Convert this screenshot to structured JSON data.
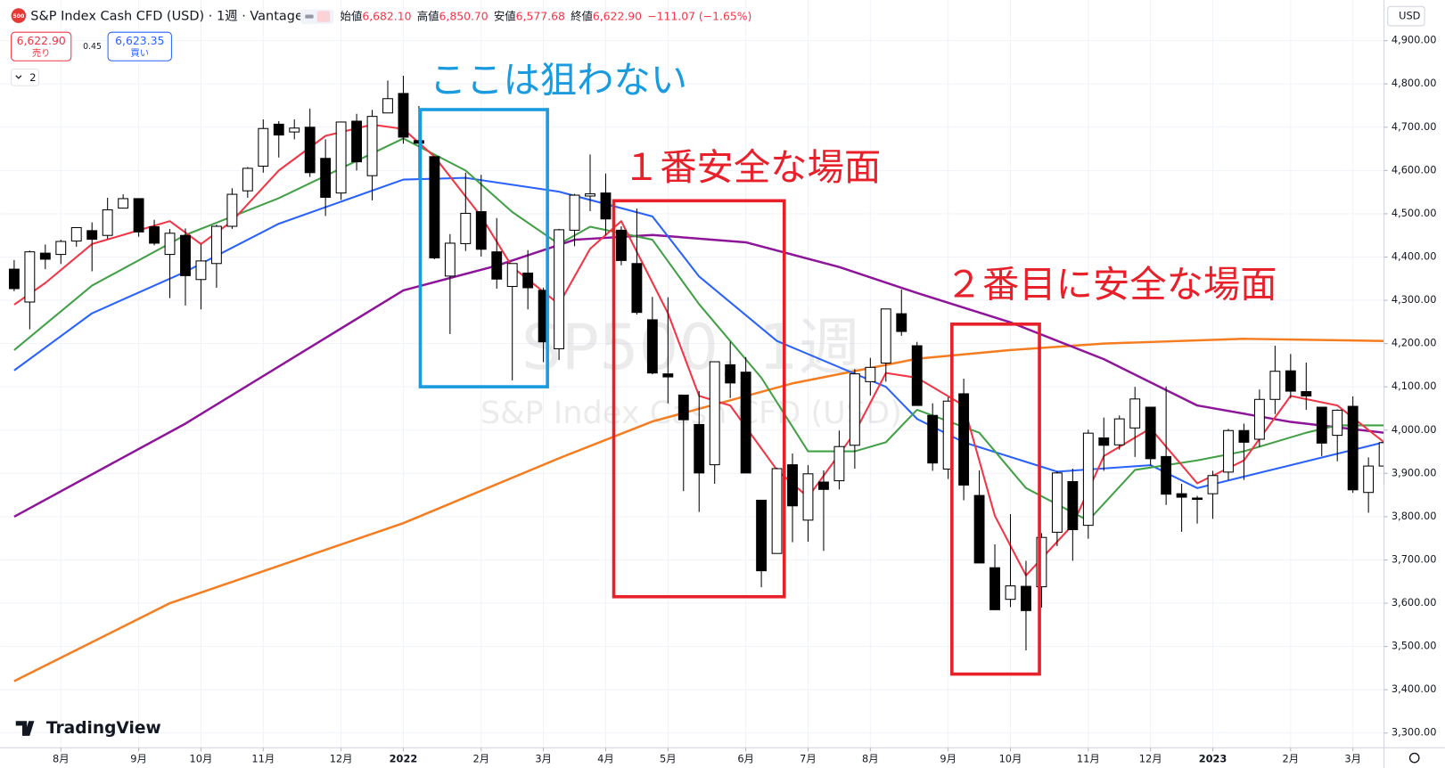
{
  "header": {
    "badge": "500",
    "symbol": "S&P Index Cash CFD (USD) · 1週 · Vantage",
    "ohlc": [
      {
        "label": "始値",
        "value": "6,682.10"
      },
      {
        "label": "高値",
        "value": "6,850.70"
      },
      {
        "label": "安値",
        "value": "6,577.68"
      },
      {
        "label": "終値",
        "value": "6,622.90"
      }
    ],
    "change": "−111.07 (−1.65%)"
  },
  "trade": {
    "sell_price": "6,622.90",
    "sell_label": "売り",
    "spread": "0.45",
    "buy_price": "6,623.35",
    "buy_label": "買い"
  },
  "indicators_count": "2",
  "watermark": {
    "symbol": "SP500, 1週",
    "description": "S&P Index Cash CFD (USD)"
  },
  "logo": "TradingView",
  "chart_data": {
    "type": "candlestick",
    "currency": "USD",
    "up_color": "#ffffff",
    "down_color": "#000000",
    "wick_color": "#000000",
    "open": [
      4372,
      4296,
      4409,
      4406,
      4437,
      4461,
      4450,
      4513,
      4535,
      4470,
      4406,
      4450,
      4348,
      4385,
      4471,
      4553,
      4610,
      4707,
      4689,
      4700,
      4628,
      4548,
      4714,
      4588,
      4733,
      4778,
      4669,
      4632,
      4356,
      4431,
      4505,
      4412,
      4332,
      4363,
      4323,
      4188,
      4462,
      4541,
      4548,
      4462,
      4385,
      4255,
      4130,
      4081,
      4013,
      3920,
      4151,
      4134,
      3838,
      3715,
      3920,
      3792,
      3880,
      3883,
      3965,
      4112,
      4155,
      4269,
      4195,
      4034,
      3910,
      4084,
      3849,
      3682,
      3609,
      3639,
      3638,
      3764,
      3881,
      3780,
      3982,
      3966,
      4005,
      4053,
      3939,
      3853,
      3843,
      3853,
      3903,
      3999,
      3979,
      4071,
      4137,
      4089,
      4053,
      3988,
      4055,
      3856,
      3917
    ],
    "high": [
      4393,
      4415,
      4429,
      4440,
      4468,
      4480,
      4537,
      4545,
      4535,
      4486,
      4465,
      4466,
      4429,
      4475,
      4559,
      4608,
      4718,
      4714,
      4718,
      4743,
      4672,
      4713,
      4731,
      4740,
      4808,
      4819,
      4749,
      4632,
      4453,
      4595,
      4590,
      4490,
      4385,
      4416,
      4329,
      4465,
      4546,
      4637,
      4593,
      4471,
      4512,
      4308,
      4307,
      4081,
      4090,
      4159,
      4204,
      4169,
      3838,
      3913,
      3946,
      3919,
      3907,
      3999,
      4141,
      4167,
      4280,
      4325,
      4204,
      4062,
      4076,
      4119,
      3907,
      3736,
      3806,
      3698,
      3762,
      3905,
      3911,
      4001,
      4029,
      4034,
      4100,
      4053,
      4101,
      3876,
      3848,
      3906,
      4003,
      4015,
      4094,
      4195,
      4176,
      4156,
      4053,
      4048,
      4078,
      3937,
      3981
    ],
    "low": [
      4321,
      4233,
      4372,
      4384,
      4424,
      4367,
      4442,
      4513,
      4447,
      4427,
      4305,
      4288,
      4279,
      4329,
      4465,
      4537,
      4595,
      4630,
      4672,
      4585,
      4495,
      4532,
      4600,
      4531,
      4733,
      4662,
      4582,
      4395,
      4222,
      4414,
      4401,
      4327,
      4115,
      4279,
      4157,
      4162,
      4425,
      4506,
      4450,
      4381,
      4267,
      4129,
      4062,
      3859,
      3811,
      3876,
      4074,
      3901,
      3637,
      3715,
      3741,
      3742,
      3721,
      3863,
      3911,
      4080,
      4112,
      4218,
      4058,
      3906,
      3887,
      3838,
      3694,
      3584,
      3591,
      3491,
      3590,
      3732,
      3698,
      3749,
      3906,
      3955,
      3938,
      3918,
      3827,
      3765,
      3784,
      3795,
      3885,
      3885,
      3961,
      4037,
      4074,
      4047,
      3940,
      3928,
      3855,
      3809,
      3874
    ],
    "close": [
      4327,
      4412,
      4395,
      4436,
      4468,
      4441,
      4509,
      4535,
      4458,
      4432,
      4455,
      4357,
      4391,
      4471,
      4545,
      4605,
      4697,
      4682,
      4698,
      4595,
      4538,
      4712,
      4620,
      4725,
      4766,
      4677,
      4663,
      4398,
      4432,
      4501,
      4418,
      4349,
      4385,
      4329,
      4204,
      4463,
      4543,
      4546,
      4488,
      4392,
      4272,
      4132,
      4123,
      4024,
      3901,
      4158,
      4109,
      3901,
      3675,
      3911,
      3825,
      3899,
      3863,
      3962,
      4130,
      4145,
      4280,
      4228,
      4057,
      3924,
      4067,
      3873,
      3693,
      3585,
      3640,
      3583,
      3752,
      3901,
      3770,
      3993,
      3965,
      4026,
      4072,
      3934,
      3852,
      3845,
      3840,
      3895,
      3999,
      3972,
      4071,
      4136,
      4090,
      4079,
      3970,
      4046,
      3862,
      3917,
      3971
    ],
    "series": [
      {
        "color": "#f57c1f",
        "x": [
          0,
          10,
          25,
          35,
          41,
          50,
          58,
          64,
          70,
          79,
          88
        ],
        "values": [
          3420,
          3600,
          3785,
          3935,
          4020,
          4108,
          4165,
          4185,
          4200,
          4211,
          4206
        ]
      },
      {
        "color": "#8e1599",
        "x": [
          0,
          11,
          25,
          31,
          36,
          41,
          47,
          53,
          58,
          64,
          70,
          76,
          82,
          88
        ],
        "values": [
          3800,
          4015,
          4323,
          4380,
          4440,
          4451,
          4434,
          4377,
          4317,
          4249,
          4164,
          4057,
          4019,
          3994
        ]
      },
      {
        "color": "#2962ff",
        "x": [
          0,
          5,
          11,
          17,
          25,
          29,
          35,
          41,
          44,
          49,
          56,
          58,
          61,
          67,
          73,
          76,
          82,
          88
        ],
        "values": [
          4138,
          4270,
          4366,
          4477,
          4579,
          4583,
          4551,
          4494,
          4355,
          4206,
          4100,
          4026,
          3972,
          3904,
          3919,
          3866,
          3919,
          3972
        ]
      },
      {
        "color": "#43a047",
        "x": [
          0,
          5,
          11,
          17,
          25,
          29,
          32,
          35,
          37,
          41,
          44,
          48,
          51,
          54,
          56,
          58,
          62,
          65,
          69,
          72,
          76,
          79,
          83,
          85,
          88
        ],
        "values": [
          4185,
          4334,
          4451,
          4536,
          4674,
          4600,
          4504,
          4430,
          4470,
          4440,
          4291,
          4121,
          3951,
          3951,
          3972,
          4047,
          3994,
          3866,
          3791,
          3908,
          3930,
          3951,
          3994,
          4011,
          4011
        ]
      },
      {
        "color": "#f23645",
        "x": [
          0,
          2,
          5,
          10,
          12,
          14,
          17,
          20,
          23,
          25,
          27,
          30,
          32,
          35,
          37,
          39,
          42,
          44,
          46,
          49,
          51,
          54,
          56,
          58,
          61,
          63,
          65,
          68,
          70,
          73,
          76,
          79,
          82,
          85,
          88
        ],
        "values": [
          4290,
          4340,
          4430,
          4483,
          4430,
          4483,
          4600,
          4680,
          4706,
          4696,
          4632,
          4494,
          4377,
          4291,
          4419,
          4483,
          4270,
          4079,
          4057,
          3908,
          3845,
          3994,
          4132,
          4121,
          4057,
          3802,
          3664,
          3781,
          3940,
          4004,
          3877,
          3930,
          4079,
          4057,
          3972
        ]
      }
    ],
    "xlim": [
      -0.9,
      88
    ],
    "ylim": [
      3266,
      4994
    ],
    "yticks": [
      {
        "value": 3300,
        "label": "3,300.00"
      },
      {
        "value": 3400,
        "label": "3,400.00"
      },
      {
        "value": 3500,
        "label": "3,500.00"
      },
      {
        "value": 3600,
        "label": "3,600.00"
      },
      {
        "value": 3700,
        "label": "3,700.00"
      },
      {
        "value": 3800,
        "label": "3,800.00"
      },
      {
        "value": 3900,
        "label": "3,900.00"
      },
      {
        "value": 4000,
        "label": "4,000.00"
      },
      {
        "value": 4100,
        "label": "4,100.00"
      },
      {
        "value": 4200,
        "label": "4,200.00"
      },
      {
        "value": 4300,
        "label": "4,300.00"
      },
      {
        "value": 4400,
        "label": "4,400.00"
      },
      {
        "value": 4500,
        "label": "4,500.00"
      },
      {
        "value": 4600,
        "label": "4,600.00"
      },
      {
        "value": 4700,
        "label": "4,700.00"
      },
      {
        "value": 4800,
        "label": "4,800.00"
      },
      {
        "value": 4900,
        "label": "4,900.00"
      }
    ],
    "xticks": [
      {
        "value": 3,
        "label": "8月"
      },
      {
        "value": 8,
        "label": "9月"
      },
      {
        "value": 12,
        "label": "10月"
      },
      {
        "value": 16,
        "label": "11月"
      },
      {
        "value": 21,
        "label": "12月"
      },
      {
        "value": 25,
        "label": "2022"
      },
      {
        "value": 30,
        "label": "2月"
      },
      {
        "value": 34,
        "label": "3月"
      },
      {
        "value": 38,
        "label": "4月"
      },
      {
        "value": 42,
        "label": "5月"
      },
      {
        "value": 47,
        "label": "6月"
      },
      {
        "value": 51,
        "label": "7月"
      },
      {
        "value": 55,
        "label": "8月"
      },
      {
        "value": 60,
        "label": "9月"
      },
      {
        "value": 64,
        "label": "10月"
      },
      {
        "value": 69,
        "label": "11月"
      },
      {
        "value": 73,
        "label": "12月"
      },
      {
        "value": 77,
        "label": "2023"
      },
      {
        "value": 82,
        "label": "2月"
      },
      {
        "value": 86,
        "label": "3月"
      }
    ],
    "grid": true,
    "annotations": [
      {
        "text": "ここは狙わない",
        "color": "#1a9be0"
      },
      {
        "text": "１番安全な場面",
        "color": "#e8202a"
      },
      {
        "text": "２番目に安全な場面",
        "color": "#e8202a"
      }
    ]
  }
}
